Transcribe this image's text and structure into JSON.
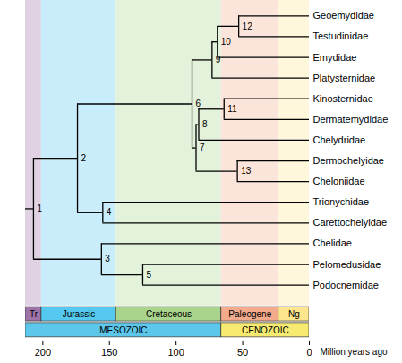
{
  "chart_data": {
    "type": "phylogram",
    "x_label": "Million years ago",
    "xlim": [
      213,
      0
    ],
    "xticks": [
      200,
      150,
      100,
      50,
      0
    ],
    "tips": [
      {
        "name": "Geoemydidae",
        "age": 0
      },
      {
        "name": "Testudinidae",
        "age": 0
      },
      {
        "name": "Emydidae",
        "age": 0
      },
      {
        "name": "Platysternidae",
        "age": 0
      },
      {
        "name": "Kinosternidae",
        "age": 0
      },
      {
        "name": "Dermatemydidae",
        "age": 0
      },
      {
        "name": "Chelydridae",
        "age": 0
      },
      {
        "name": "Dermochelyidae",
        "age": 0
      },
      {
        "name": "Cheloniidae",
        "age": 0
      },
      {
        "name": "Trionychidae",
        "age": 0
      },
      {
        "name": "Carettochelyidae",
        "age": 0
      },
      {
        "name": "Chelidae",
        "age": 0
      },
      {
        "name": "Pelomedusidae",
        "age": 0
      },
      {
        "name": "Podocnemidae",
        "age": 0
      }
    ],
    "nodes": [
      {
        "label": "1",
        "age": 207,
        "children": [
          "2",
          "3"
        ]
      },
      {
        "label": "2",
        "age": 174,
        "children": [
          "6",
          "4"
        ]
      },
      {
        "label": "3",
        "age": 156,
        "children": [
          "Chelidae",
          "5"
        ]
      },
      {
        "label": "4",
        "age": 155,
        "children": [
          "Trionychidae",
          "Carettochelyidae"
        ]
      },
      {
        "label": "5",
        "age": 125,
        "children": [
          "Pelomedusidae",
          "Podocnemidae"
        ]
      },
      {
        "label": "6",
        "age": 88,
        "children": [
          "9",
          "7"
        ]
      },
      {
        "label": "7",
        "age": 85,
        "children": [
          "8",
          "13"
        ]
      },
      {
        "label": "8",
        "age": 83,
        "children": [
          "11",
          "Chelydridae"
        ]
      },
      {
        "label": "9",
        "age": 73,
        "children": [
          "10",
          "Platysternidae"
        ]
      },
      {
        "label": "10",
        "age": 69,
        "children": [
          "12",
          "Emydidae"
        ]
      },
      {
        "label": "11",
        "age": 64,
        "children": [
          "Kinosternidae",
          "Dermatemydidae"
        ]
      },
      {
        "label": "12",
        "age": 53,
        "children": [
          "Geoemydidae",
          "Testudinidae"
        ]
      },
      {
        "label": "13",
        "age": 54,
        "children": [
          "Dermochelyidae",
          "Cheloniidae"
        ]
      }
    ],
    "periods": [
      {
        "name": "Tr",
        "end": 201,
        "color": "#9e73a8"
      },
      {
        "name": "Jurassic",
        "end": 145,
        "color": "#55c8ef"
      },
      {
        "name": "Cretaceous",
        "end": 66,
        "color": "#a8d58b"
      },
      {
        "name": "Paleogene",
        "end": 23,
        "color": "#f4ab8b"
      },
      {
        "name": "Ng",
        "end": 0,
        "color": "#fde68d"
      }
    ],
    "eras": [
      {
        "name": "MESOZOIC",
        "end": 66,
        "color": "#5cc7ea"
      },
      {
        "name": "CENOZOIC",
        "end": 0,
        "color": "#f6eb70"
      }
    ]
  }
}
